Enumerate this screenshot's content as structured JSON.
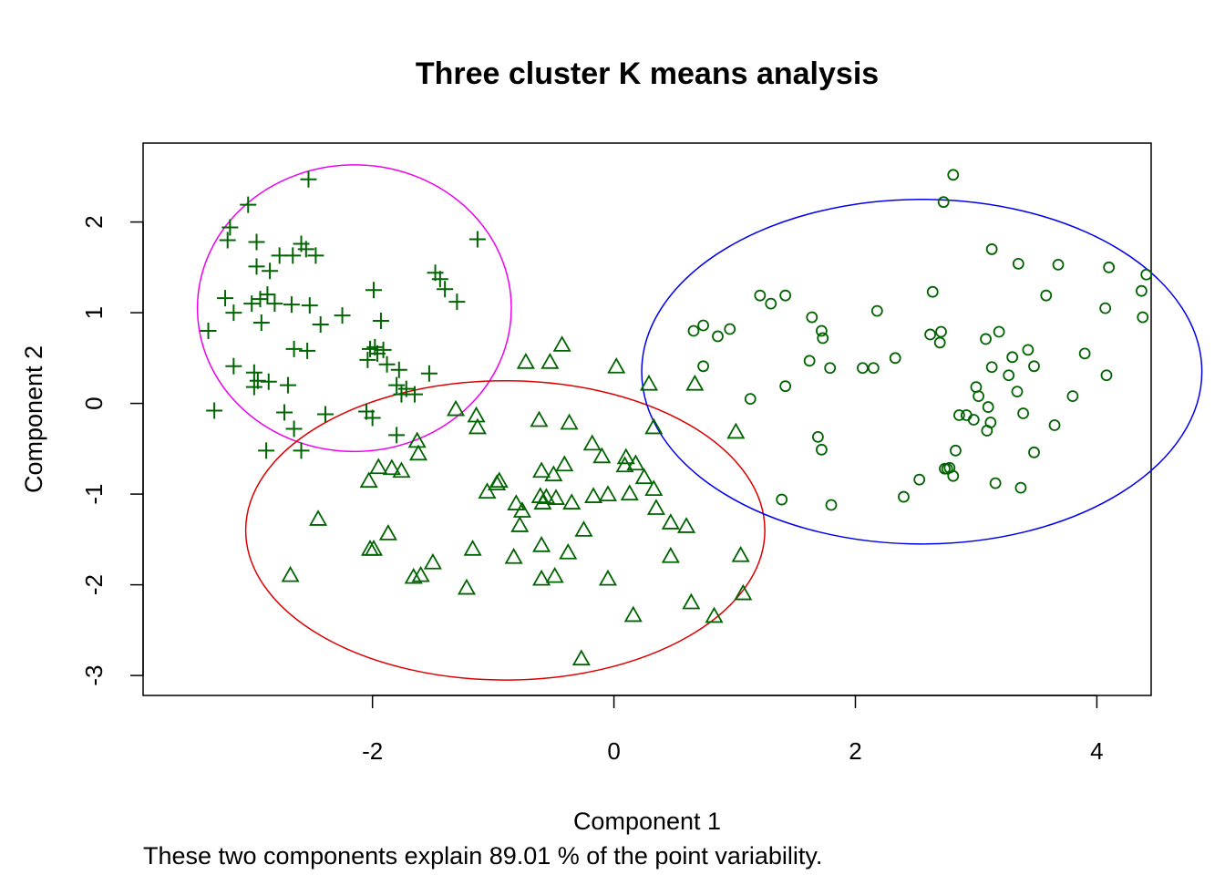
{
  "chart_data": {
    "type": "scatter",
    "title": "Three cluster K means analysis",
    "xlabel": "Component 1",
    "ylabel": "Component 2",
    "subtitle": "These two components explain 89.01 % of the point variability.",
    "xlim": [
      -3.9,
      4.45
    ],
    "ylim": [
      -3.22,
      2.87
    ],
    "x_ticks": [
      -2,
      0,
      2,
      4
    ],
    "y_ticks": [
      -3,
      -2,
      -1,
      0,
      1,
      2
    ],
    "x_tick_labels": [
      "-2",
      "0",
      "2",
      "4"
    ],
    "y_tick_labels": [
      "-3",
      "-2",
      "-1",
      "0",
      "1",
      "2"
    ],
    "point_color": "#006400",
    "grid": false,
    "legend": "none",
    "series": [
      {
        "marker": "plus",
        "ellipse": {
          "cx": -2.15,
          "cy": 1.05,
          "rx": 1.3,
          "ry": 1.58,
          "color": "#EE00EE"
        },
        "points": [
          [
            -3.03,
            2.19
          ],
          [
            -2.53,
            2.47
          ],
          [
            -2.96,
            1.78
          ],
          [
            -3.18,
            1.94
          ],
          [
            -3.2,
            1.8
          ],
          [
            -2.66,
            1.63
          ],
          [
            -2.77,
            1.63
          ],
          [
            -2.59,
            1.76
          ],
          [
            -2.55,
            1.7
          ],
          [
            -2.47,
            1.63
          ],
          [
            -1.13,
            1.81
          ],
          [
            -2.96,
            1.51
          ],
          [
            -2.85,
            1.46
          ],
          [
            -1.48,
            1.44
          ],
          [
            -1.44,
            1.37
          ],
          [
            -1.4,
            1.26
          ],
          [
            -1.3,
            1.12
          ],
          [
            -3.22,
            1.16
          ],
          [
            -2.93,
            1.15
          ],
          [
            -2.87,
            1.2
          ],
          [
            -3.0,
            1.1
          ],
          [
            -2.81,
            1.1
          ],
          [
            -2.67,
            1.09
          ],
          [
            -2.52,
            1.08
          ],
          [
            -1.99,
            1.25
          ],
          [
            -3.15,
            1.0
          ],
          [
            -2.25,
            0.97
          ],
          [
            -2.43,
            0.87
          ],
          [
            -1.93,
            0.91
          ],
          [
            -3.36,
            0.8
          ],
          [
            -2.92,
            0.89
          ],
          [
            -2.65,
            0.6
          ],
          [
            -2.54,
            0.58
          ],
          [
            -2.02,
            0.6
          ],
          [
            -1.96,
            0.55
          ],
          [
            -1.98,
            0.62
          ],
          [
            -1.91,
            0.59
          ],
          [
            -2.04,
            0.48
          ],
          [
            -1.88,
            0.43
          ],
          [
            -3.15,
            0.41
          ],
          [
            -1.78,
            0.37
          ],
          [
            -1.53,
            0.33
          ],
          [
            -2.98,
            0.34
          ],
          [
            -2.95,
            0.25
          ],
          [
            -2.86,
            0.24
          ],
          [
            -2.98,
            0.18
          ],
          [
            -2.7,
            0.2
          ],
          [
            -1.8,
            0.2
          ],
          [
            -1.72,
            0.16
          ],
          [
            -1.65,
            0.1
          ],
          [
            -1.76,
            0.1
          ],
          [
            -3.31,
            -0.08
          ],
          [
            -2.39,
            -0.12
          ],
          [
            -2.05,
            -0.09
          ],
          [
            -2.73,
            -0.1
          ],
          [
            -2.0,
            -0.16
          ],
          [
            -2.65,
            -0.28
          ],
          [
            -1.8,
            -0.35
          ],
          [
            -2.88,
            -0.52
          ],
          [
            -2.59,
            -0.52
          ]
        ]
      },
      {
        "marker": "triangle",
        "ellipse": {
          "cx": -0.9,
          "cy": -1.4,
          "rx": 2.15,
          "ry": 1.65,
          "color": "#DD0000"
        },
        "points": [
          [
            -0.43,
            0.64
          ],
          [
            -0.73,
            0.45
          ],
          [
            -0.53,
            0.45
          ],
          [
            0.02,
            0.4
          ],
          [
            0.67,
            0.21
          ],
          [
            0.29,
            0.21
          ],
          [
            -1.31,
            -0.07
          ],
          [
            -1.14,
            -0.14
          ],
          [
            -0.62,
            -0.19
          ],
          [
            -0.37,
            -0.22
          ],
          [
            -1.13,
            -0.27
          ],
          [
            0.33,
            -0.27
          ],
          [
            1.01,
            -0.32
          ],
          [
            -1.63,
            -0.42
          ],
          [
            -0.18,
            -0.45
          ],
          [
            -1.62,
            -0.56
          ],
          [
            -0.1,
            -0.59
          ],
          [
            0.1,
            -0.6
          ],
          [
            0.18,
            -0.67
          ],
          [
            0.09,
            -0.69
          ],
          [
            -0.41,
            -0.68
          ],
          [
            -1.95,
            -0.71
          ],
          [
            -1.84,
            -0.72
          ],
          [
            -1.76,
            -0.75
          ],
          [
            -0.6,
            -0.75
          ],
          [
            -0.5,
            -0.79
          ],
          [
            0.25,
            -0.82
          ],
          [
            -2.03,
            -0.86
          ],
          [
            -0.95,
            -0.86
          ],
          [
            -0.97,
            -0.89
          ],
          [
            0.33,
            -0.95
          ],
          [
            -1.05,
            -0.98
          ],
          [
            -0.05,
            -1.01
          ],
          [
            -0.56,
            -1.04
          ],
          [
            -0.48,
            -1.05
          ],
          [
            -0.61,
            -1.03
          ],
          [
            -0.17,
            -1.03
          ],
          [
            0.13,
            -1.0
          ],
          [
            -0.81,
            -1.11
          ],
          [
            -0.59,
            -1.1
          ],
          [
            -0.35,
            -1.1
          ],
          [
            -0.76,
            -1.19
          ],
          [
            0.35,
            -1.16
          ],
          [
            -2.45,
            -1.28
          ],
          [
            -0.78,
            -1.35
          ],
          [
            0.47,
            -1.32
          ],
          [
            0.6,
            -1.36
          ],
          [
            -0.25,
            -1.4
          ],
          [
            -1.87,
            -1.44
          ],
          [
            -0.6,
            -1.57
          ],
          [
            -2.02,
            -1.61
          ],
          [
            -1.99,
            -1.61
          ],
          [
            -1.17,
            -1.61
          ],
          [
            -0.38,
            -1.65
          ],
          [
            -0.83,
            -1.7
          ],
          [
            0.47,
            -1.69
          ],
          [
            1.05,
            -1.68
          ],
          [
            -1.5,
            -1.76
          ],
          [
            -1.6,
            -1.9
          ],
          [
            -1.66,
            -1.92
          ],
          [
            -0.6,
            -1.94
          ],
          [
            -0.49,
            -1.91
          ],
          [
            -0.05,
            -1.94
          ],
          [
            -2.68,
            -1.9
          ],
          [
            -1.22,
            -2.04
          ],
          [
            1.07,
            -2.1
          ],
          [
            0.64,
            -2.2
          ],
          [
            0.16,
            -2.34
          ],
          [
            0.83,
            -2.35
          ],
          [
            -0.27,
            -2.82
          ]
        ]
      },
      {
        "marker": "circle",
        "ellipse": {
          "cx": 2.55,
          "cy": 0.35,
          "rx": 2.32,
          "ry": 1.9,
          "color": "#0000EE"
        },
        "points": [
          [
            2.81,
            2.52
          ],
          [
            2.73,
            2.22
          ],
          [
            3.13,
            1.7
          ],
          [
            3.35,
            1.54
          ],
          [
            3.68,
            1.53
          ],
          [
            4.1,
            1.5
          ],
          [
            4.41,
            1.42
          ],
          [
            4.37,
            1.24
          ],
          [
            1.21,
            1.19
          ],
          [
            1.3,
            1.1
          ],
          [
            1.42,
            1.19
          ],
          [
            2.64,
            1.23
          ],
          [
            3.58,
            1.19
          ],
          [
            4.07,
            1.05
          ],
          [
            2.18,
            1.02
          ],
          [
            4.38,
            0.95
          ],
          [
            1.64,
            0.95
          ],
          [
            0.74,
            0.86
          ],
          [
            0.66,
            0.8
          ],
          [
            0.96,
            0.82
          ],
          [
            1.72,
            0.8
          ],
          [
            2.71,
            0.79
          ],
          [
            3.19,
            0.79
          ],
          [
            2.62,
            0.76
          ],
          [
            0.86,
            0.74
          ],
          [
            1.73,
            0.72
          ],
          [
            3.08,
            0.71
          ],
          [
            2.7,
            0.67
          ],
          [
            3.43,
            0.59
          ],
          [
            3.3,
            0.51
          ],
          [
            3.9,
            0.55
          ],
          [
            2.33,
            0.5
          ],
          [
            1.62,
            0.47
          ],
          [
            0.74,
            0.41
          ],
          [
            1.79,
            0.39
          ],
          [
            2.06,
            0.39
          ],
          [
            2.15,
            0.39
          ],
          [
            3.13,
            0.4
          ],
          [
            3.48,
            0.41
          ],
          [
            3.27,
            0.31
          ],
          [
            4.08,
            0.31
          ],
          [
            1.42,
            0.19
          ],
          [
            3.0,
            0.18
          ],
          [
            3.02,
            0.08
          ],
          [
            3.34,
            0.13
          ],
          [
            3.8,
            0.08
          ],
          [
            1.13,
            0.05
          ],
          [
            3.1,
            -0.04
          ],
          [
            3.39,
            -0.11
          ],
          [
            2.86,
            -0.13
          ],
          [
            2.92,
            -0.13
          ],
          [
            2.98,
            -0.18
          ],
          [
            3.12,
            -0.21
          ],
          [
            3.65,
            -0.24
          ],
          [
            3.09,
            -0.3
          ],
          [
            1.69,
            -0.37
          ],
          [
            1.72,
            -0.51
          ],
          [
            2.83,
            -0.52
          ],
          [
            3.48,
            -0.54
          ],
          [
            2.74,
            -0.72
          ],
          [
            2.76,
            -0.72
          ],
          [
            2.78,
            -0.71
          ],
          [
            2.81,
            -0.8
          ],
          [
            2.53,
            -0.84
          ],
          [
            3.16,
            -0.88
          ],
          [
            3.37,
            -0.93
          ],
          [
            2.4,
            -1.03
          ],
          [
            1.39,
            -1.06
          ],
          [
            1.8,
            -1.12
          ]
        ]
      }
    ]
  }
}
